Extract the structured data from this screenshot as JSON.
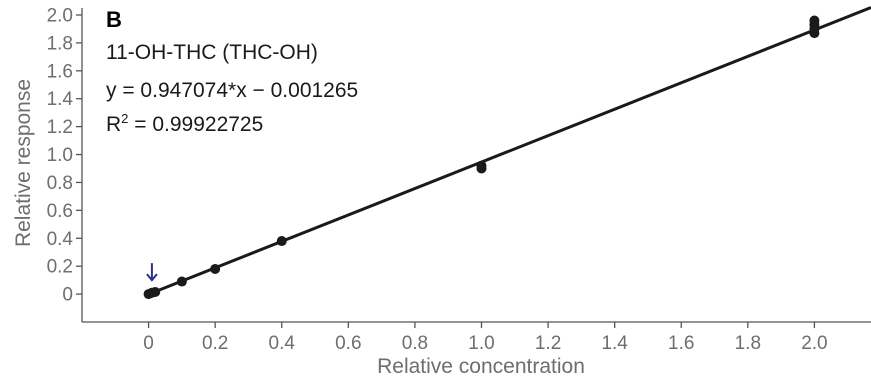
{
  "chart_data": {
    "type": "scatter",
    "panel_label": "B",
    "title": "11-OH-THC (THC-OH)",
    "equation": "y = 0.947074*x − 0.001265",
    "r_squared_prefix": "R",
    "r_squared_exp": "2",
    "r_squared_value": " = 0.99922725",
    "xlabel": "Relative concentration",
    "ylabel": "Relative response",
    "xlim": [
      -0.2,
      2.17
    ],
    "ylim": [
      -0.2,
      2.05
    ],
    "xticks": [
      {
        "value": 0,
        "label": "0"
      },
      {
        "value": 0.2,
        "label": "0.2"
      },
      {
        "value": 0.4,
        "label": "0.4"
      },
      {
        "value": 0.6,
        "label": "0.6"
      },
      {
        "value": 0.8,
        "label": "0.8"
      },
      {
        "value": 1.0,
        "label": "1.0"
      },
      {
        "value": 1.2,
        "label": "1.2"
      },
      {
        "value": 1.4,
        "label": "1.4"
      },
      {
        "value": 1.6,
        "label": "1.6"
      },
      {
        "value": 1.8,
        "label": "1.8"
      },
      {
        "value": 2.0,
        "label": "2.0"
      }
    ],
    "yticks": [
      {
        "value": 0,
        "label": "0"
      },
      {
        "value": 0.2,
        "label": "0.2"
      },
      {
        "value": 0.4,
        "label": "0.4"
      },
      {
        "value": 0.6,
        "label": "0.6"
      },
      {
        "value": 0.8,
        "label": "0.8"
      },
      {
        "value": 1.0,
        "label": "1.0"
      },
      {
        "value": 1.2,
        "label": "1.2"
      },
      {
        "value": 1.4,
        "label": "1.4"
      },
      {
        "value": 1.6,
        "label": "1.6"
      },
      {
        "value": 1.8,
        "label": "1.8"
      },
      {
        "value": 2.0,
        "label": "2.0"
      }
    ],
    "fit": {
      "slope": 0.947074,
      "intercept": -0.001265,
      "x_range": [
        0,
        2.17
      ]
    },
    "points": [
      {
        "x": 0.0,
        "y": 0.0
      },
      {
        "x": 0.01,
        "y": 0.01
      },
      {
        "x": 0.02,
        "y": 0.015
      },
      {
        "x": 0.1,
        "y": 0.09
      },
      {
        "x": 0.2,
        "y": 0.18
      },
      {
        "x": 0.4,
        "y": 0.38
      },
      {
        "x": 1.0,
        "y": 0.92
      },
      {
        "x": 1.0,
        "y": 0.9
      },
      {
        "x": 2.0,
        "y": 1.96
      },
      {
        "x": 2.0,
        "y": 1.93
      },
      {
        "x": 2.0,
        "y": 1.9
      },
      {
        "x": 2.0,
        "y": 1.87
      }
    ],
    "arrow_marker": {
      "x": 0.01,
      "y": 0.1
    },
    "grid": false,
    "colors": {
      "points": "#1a1a1a",
      "fit_line": "#1a1a1a",
      "arrow": "#2b2f8f",
      "axis": "#555555",
      "labels": "#6e6e6e"
    }
  }
}
